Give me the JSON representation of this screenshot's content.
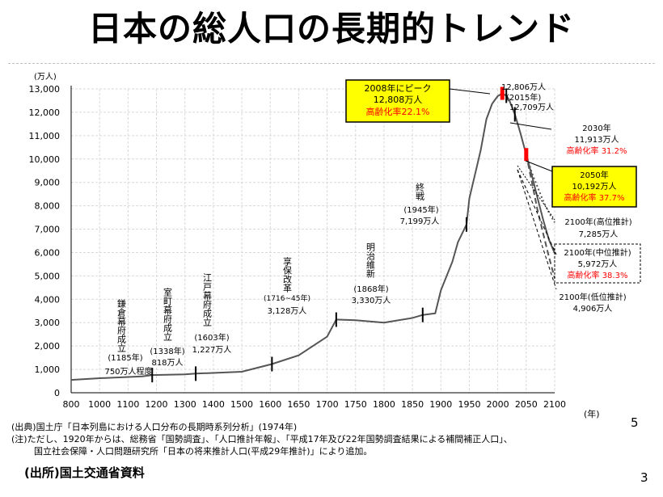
{
  "page": {
    "title": "日本の総人口の長期的トレンド",
    "footnote_source": "(出典)国土庁「日本列島における人口分布の長期時系列分析」(1974年)",
    "footnote_note_1": "(注)ただし、1920年からは、総務省「国勢調査」、「人口推計年報」、「平成17年及び22年国勢調査結果による補間補正人口」、",
    "footnote_note_2": "国立社会保障・人口問題研究所「日本の将来推計人口(平成29年推計)」により追加。",
    "slide_number_inner": "5",
    "slide_number": "3",
    "source_credit": "(出所)国土交通省資料"
  },
  "chart_data": {
    "type": "line",
    "ylabel": "(万人)",
    "xlabel": "(年)",
    "xlim": [
      800,
      2100
    ],
    "ylim": [
      0,
      13000
    ],
    "x_ticks": [
      800,
      1000,
      1100,
      1200,
      1300,
      1400,
      1500,
      1600,
      1650,
      1700,
      1750,
      1800,
      1850,
      1900,
      1950,
      2000,
      2050,
      2100
    ],
    "x_tick_labels": [
      "800",
      "1000",
      "1100",
      "1200",
      "1300",
      "1400",
      "1500",
      "1600",
      "1650",
      "1700",
      "1750",
      "1800",
      "1850",
      "1900",
      "1950",
      "2000",
      "2050",
      "2100"
    ],
    "y_ticks": [
      0,
      1000,
      2000,
      3000,
      4000,
      5000,
      6000,
      7000,
      8000,
      9000,
      10000,
      11000,
      12000,
      13000
    ],
    "y_tick_labels": [
      "0",
      "1,000",
      "2,000",
      "3,000",
      "4,000",
      "5,000",
      "6,000",
      "7,000",
      "8,000",
      "9,000",
      "10,000",
      "11,000",
      "12,000",
      "13,000"
    ],
    "grid": true,
    "series": [
      {
        "style": "solid",
        "x": [
          800,
          1000,
          1150,
          1185,
          1300,
          1338,
          1500,
          1603,
          1650,
          1700,
          1716,
          1720,
          1750,
          1800,
          1850,
          1868,
          1890,
          1900,
          1920,
          1930,
          1945,
          1950,
          1960,
          1970,
          1980,
          1990,
          2000,
          2008,
          2015,
          2020,
          2030,
          2040,
          2050,
          2060,
          2070,
          2080,
          2090,
          2100
        ],
        "y": [
          551,
          622,
          700,
          757,
          790,
          818,
          900,
          1227,
          1600,
          2400,
          3128,
          3128,
          3100,
          3000,
          3200,
          3330,
          3400,
          4385,
          5596,
          6445,
          7199,
          8320,
          9342,
          10372,
          11706,
          12361,
          12693,
          12808,
          12709,
          12532,
          11913,
          11092,
          10192,
          9284,
          8323,
          7384,
          6542,
          5972
        ]
      },
      {
        "style": "dotted",
        "x": [
          2050,
          2060,
          2070,
          2080,
          2090,
          2100
        ],
        "y": [
          10192,
          9400,
          8800,
          8200,
          7700,
          7285
        ]
      },
      {
        "style": "dashed",
        "x": [
          2050,
          2060,
          2070,
          2080,
          2090,
          2100
        ],
        "y": [
          10192,
          9000,
          7800,
          6800,
          5800,
          4906
        ]
      }
    ],
    "annotations": {
      "kamakura": {
        "label": "鎌倉幕府成立",
        "year_label": "(1185年)",
        "value_label": "750万人程度"
      },
      "muromachi": {
        "label": "室町幕府成立",
        "year_label": "(1338年)",
        "value_label": "818万人"
      },
      "edo": {
        "label": "江戸幕府成立",
        "year_label": "(1603年)",
        "value_label": "1,227万人"
      },
      "kyoho": {
        "label": "享保改革",
        "year_label": "(1716~45年)",
        "value_label": "3,128万人"
      },
      "meiji": {
        "label": "明治維新",
        "year_label": "(1868年)",
        "value_label": "3,330万人"
      },
      "war_end": {
        "label": "終戦",
        "year_label": "(1945年)",
        "value_label": "7,199万人"
      },
      "y2015": {
        "value_label": "12,806万人",
        "year_label": "(2015年)",
        "value_label_2": "12,709万人"
      },
      "peak": {
        "title": "2008年にピーク",
        "value_label": "12,808万人",
        "aging_label": "高齢化率22.1%"
      },
      "y2030": {
        "year_label": "2030年",
        "value_label": "11,913万人",
        "aging_label": "高齢化率 31.2%"
      },
      "y2050": {
        "year_label": "2050年",
        "value_label": "10,192万人",
        "aging_label": "高齢化率 37.7%"
      },
      "high": {
        "label": "2100年(高位推計)",
        "value_label": "7,285万人"
      },
      "mid": {
        "label": "2100年(中位推計)",
        "value_label": "5,972万人",
        "aging_label": "高齢化率 38.3%"
      },
      "low": {
        "label": "2100年(低位推計)",
        "value_label": "4,906万人"
      }
    },
    "colors": {
      "line": "#555555",
      "highlight": "#ffff00",
      "aging_text": "#ff0000",
      "marker": "#ff0000"
    }
  }
}
